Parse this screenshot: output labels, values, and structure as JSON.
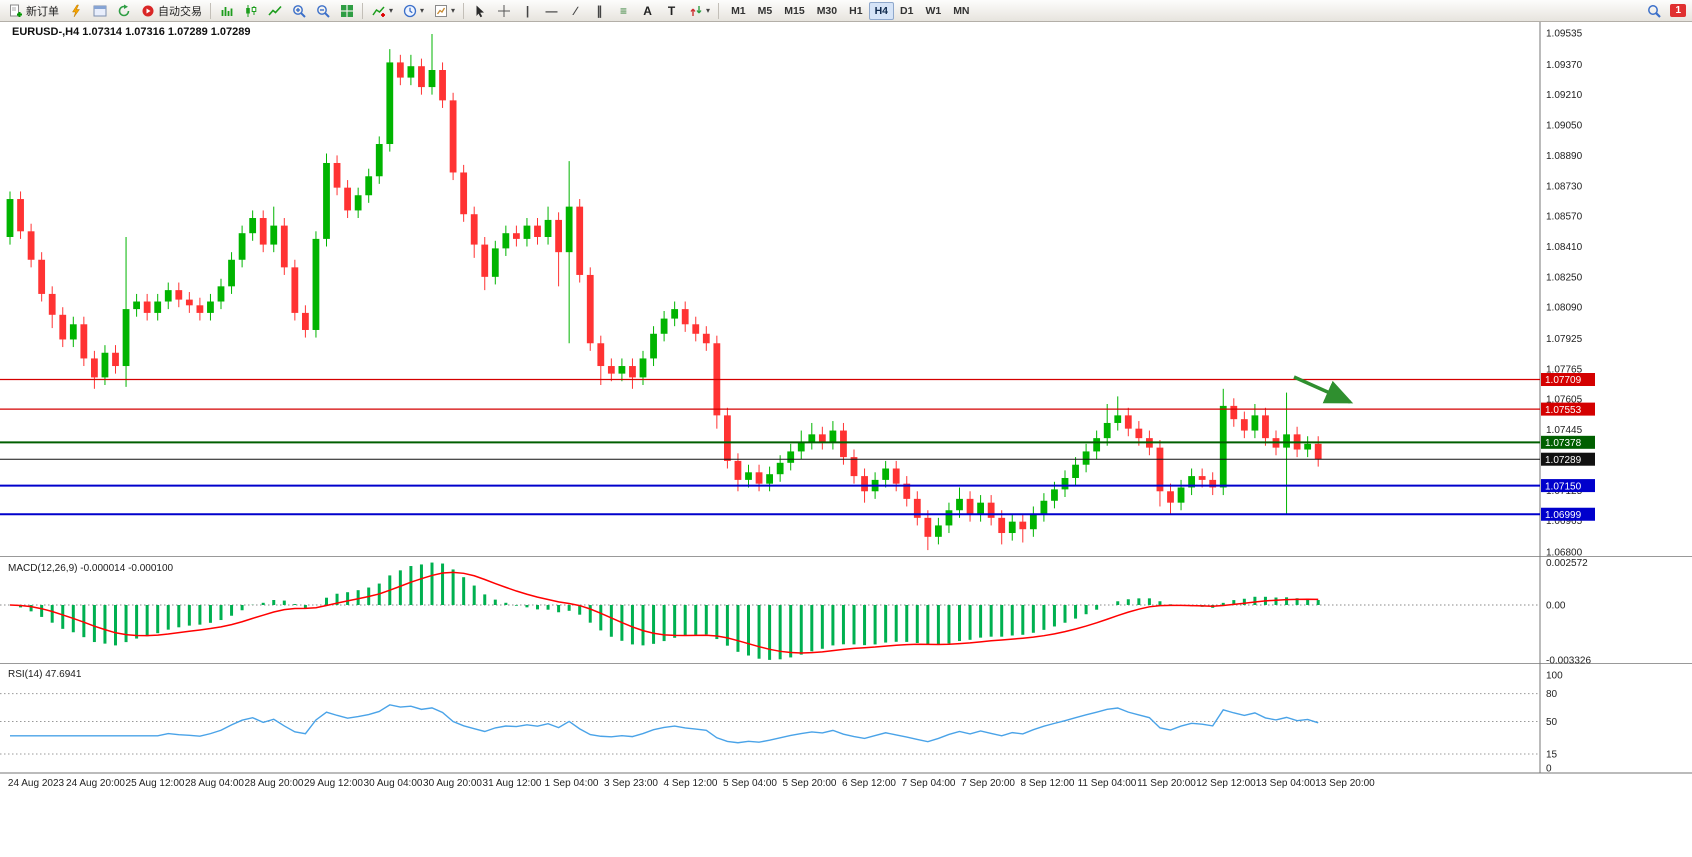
{
  "toolbar": {
    "items": [
      {
        "kind": "btn",
        "name": "new-order-button",
        "icon": "new-order",
        "label": "新订单"
      },
      {
        "kind": "btn",
        "name": "lightning-button",
        "icon": "lightning"
      },
      {
        "kind": "btn",
        "name": "open-chart-button",
        "icon": "chart-window"
      },
      {
        "kind": "btn",
        "name": "refresh-button",
        "icon": "refresh"
      },
      {
        "kind": "btn",
        "name": "autotrade-button",
        "icon": "autotrade",
        "label": "自动交易"
      },
      {
        "kind": "sep"
      },
      {
        "kind": "btn",
        "name": "bar-chart-button",
        "icon": "bars"
      },
      {
        "kind": "btn",
        "name": "candlestick-chart-button",
        "icon": "candles"
      },
      {
        "kind": "btn",
        "name": "line-chart-button",
        "icon": "line-chart"
      },
      {
        "kind": "btn",
        "name": "zoom-in-button",
        "icon": "zoom-in"
      },
      {
        "kind": "btn",
        "name": "zoom-out-button",
        "icon": "zoom-out"
      },
      {
        "kind": "btn",
        "name": "tile-windows-button",
        "icon": "tiles"
      },
      {
        "kind": "sep"
      },
      {
        "kind": "btn",
        "name": "indicators-button",
        "icon": "indicators",
        "caret": true
      },
      {
        "kind": "btn",
        "name": "periods-button",
        "icon": "clock",
        "caret": true
      },
      {
        "kind": "btn",
        "name": "templates-button",
        "icon": "template",
        "caret": true
      },
      {
        "kind": "sep"
      },
      {
        "kind": "btn",
        "name": "cursor-button",
        "icon": "cursor"
      },
      {
        "kind": "btn",
        "name": "crosshair-button",
        "icon": "crosshair"
      },
      {
        "kind": "btn",
        "name": "vertical-line-button",
        "glyph": "|",
        "glyph_color": "#444"
      },
      {
        "kind": "btn",
        "name": "horizontal-line-button",
        "glyph": "—",
        "glyph_color": "#444"
      },
      {
        "kind": "btn",
        "name": "trendline-button",
        "glyph": "∕",
        "glyph_color": "#444"
      },
      {
        "kind": "btn",
        "name": "equidistant-channel-button",
        "glyph": "∥",
        "glyph_color": "#444"
      },
      {
        "kind": "btn",
        "name": "fibonacci-button",
        "glyph": "≡",
        "glyph_color": "#2e7d32"
      },
      {
        "kind": "btn",
        "name": "text-button",
        "glyph": "A",
        "glyph_color": "#222"
      },
      {
        "kind": "btn",
        "name": "text-label-button",
        "glyph": "T",
        "glyph_color": "#222"
      },
      {
        "kind": "btn",
        "name": "arrows-button",
        "icon": "arrows",
        "caret": true
      },
      {
        "kind": "sep"
      }
    ],
    "timeframes": [
      "M1",
      "M5",
      "M15",
      "M30",
      "H1",
      "H4",
      "D1",
      "W1",
      "MN"
    ],
    "active_timeframe": "H4",
    "notification_count": "1"
  },
  "chart": {
    "title_line": "EURUSD-,H4  1.07314 1.07316 1.07289 1.07289",
    "price_scale": [
      "1.09535",
      "1.09370",
      "1.09210",
      "1.09050",
      "1.08890",
      "1.08730",
      "1.08570",
      "1.08410",
      "1.08250",
      "1.08090",
      "1.07925",
      "1.07765",
      "1.07605",
      "1.07445",
      "1.07285",
      "1.07125",
      "1.06965",
      "1.06800"
    ],
    "levels": [
      {
        "price": 1.07709,
        "label": "1.07709",
        "color": "#d40000",
        "width": 1.2,
        "type": "resistance-upper"
      },
      {
        "price": 1.07553,
        "label": "1.07553",
        "color": "#d40000",
        "width": 1.2,
        "type": "resistance-lower"
      },
      {
        "price": 1.07378,
        "label": "1.07378",
        "color": "#005f00",
        "width": 2,
        "type": "pivot"
      },
      {
        "price": 1.07289,
        "label": "1.07289",
        "color": "#111111",
        "width": 1,
        "type": "bid"
      },
      {
        "price": 1.0715,
        "label": "1.07150",
        "color": "#0000cc",
        "width": 2,
        "type": "support-upper"
      },
      {
        "price": 1.06999,
        "label": "1.06999",
        "color": "#0000cc",
        "width": 2,
        "type": "support-lower"
      }
    ],
    "colors": {
      "bull": "#00b400",
      "bear": "#ff3333",
      "macd_hist": "#00b050",
      "macd_signal": "#ff0000",
      "rsi_line": "#4aa3e8",
      "arrow": "#2f8f2f"
    }
  },
  "macd": {
    "label": "MACD(12,26,9) -0.000014 -0.000100",
    "scale": [
      "0.002572",
      "0.00",
      "-0.003326"
    ]
  },
  "rsi": {
    "label": "RSI(14) 47.6941",
    "scale": [
      "100",
      "80",
      "50",
      "15",
      "0"
    ],
    "levels": [
      80,
      50,
      15
    ]
  },
  "time_axis": [
    "24 Aug 2023",
    "24 Aug 20:00",
    "25 Aug 12:00",
    "28 Aug 04:00",
    "28 Aug 20:00",
    "29 Aug 12:00",
    "30 Aug 04:00",
    "30 Aug 20:00",
    "31 Aug 12:00",
    "1 Sep 04:00",
    "3 Sep 23:00",
    "4 Sep 12:00",
    "5 Sep 04:00",
    "5 Sep 20:00",
    "6 Sep 12:00",
    "7 Sep 04:00",
    "7 Sep 20:00",
    "8 Sep 12:00",
    "11 Sep 04:00",
    "11 Sep 20:00",
    "12 Sep 12:00",
    "13 Sep 04:00",
    "13 Sep 20:00"
  ],
  "chart_data": {
    "type": "candlestick",
    "symbol": "EURUSD-",
    "timeframe": "H4",
    "ohlc_display": "1.07314 1.07316 1.07289 1.07289",
    "indicators": [
      {
        "name": "MACD",
        "params": [
          12,
          26,
          9
        ],
        "current": "-0.000014 -0.000100"
      },
      {
        "name": "RSI",
        "params": [
          14
        ],
        "current": 47.6941
      }
    ],
    "candles": [
      [
        1.0846,
        1.087,
        1.0842,
        1.0866
      ],
      [
        1.0866,
        1.087,
        1.0845,
        1.0849
      ],
      [
        1.0849,
        1.0853,
        1.083,
        1.0834
      ],
      [
        1.0834,
        1.0838,
        1.0812,
        1.0816
      ],
      [
        1.0816,
        1.082,
        1.0798,
        1.0805
      ],
      [
        1.0805,
        1.0809,
        1.0788,
        1.0792
      ],
      [
        1.0792,
        1.0804,
        1.0788,
        1.08
      ],
      [
        1.08,
        1.0804,
        1.0778,
        1.0782
      ],
      [
        1.0782,
        1.0786,
        1.0766,
        1.0772
      ],
      [
        1.0772,
        1.0789,
        1.0768,
        1.0785
      ],
      [
        1.0785,
        1.0789,
        1.0774,
        1.0778
      ],
      [
        1.0778,
        1.0846,
        1.0767,
        1.0808
      ],
      [
        1.0808,
        1.0816,
        1.0804,
        1.0812
      ],
      [
        1.0812,
        1.0816,
        1.0802,
        1.0806
      ],
      [
        1.0806,
        1.0816,
        1.0802,
        1.0812
      ],
      [
        1.0812,
        1.0822,
        1.0808,
        1.0818
      ],
      [
        1.0818,
        1.0822,
        1.0809,
        1.0813
      ],
      [
        1.0813,
        1.0817,
        1.0806,
        1.081
      ],
      [
        1.081,
        1.0814,
        1.0802,
        1.0806
      ],
      [
        1.0806,
        1.0816,
        1.0802,
        1.0812
      ],
      [
        1.0812,
        1.0824,
        1.0808,
        1.082
      ],
      [
        1.082,
        1.0838,
        1.0816,
        1.0834
      ],
      [
        1.0834,
        1.0852,
        1.083,
        1.0848
      ],
      [
        1.0848,
        1.086,
        1.0844,
        1.0856
      ],
      [
        1.0856,
        1.086,
        1.0838,
        1.0842
      ],
      [
        1.0842,
        1.0862,
        1.0838,
        1.0852
      ],
      [
        1.0852,
        1.0856,
        1.0826,
        1.083
      ],
      [
        1.083,
        1.0834,
        1.0802,
        1.0806
      ],
      [
        1.0806,
        1.081,
        1.0793,
        1.0797
      ],
      [
        1.0797,
        1.0849,
        1.0793,
        1.0845
      ],
      [
        1.0845,
        1.089,
        1.0841,
        1.0885
      ],
      [
        1.0885,
        1.0889,
        1.0868,
        1.0872
      ],
      [
        1.0872,
        1.0876,
        1.0856,
        1.086
      ],
      [
        1.086,
        1.0872,
        1.0856,
        1.0868
      ],
      [
        1.0868,
        1.0882,
        1.0864,
        1.0878
      ],
      [
        1.0878,
        1.0899,
        1.0874,
        1.0895
      ],
      [
        1.0895,
        1.0945,
        1.0891,
        1.0938
      ],
      [
        1.0938,
        1.0942,
        1.0926,
        1.093
      ],
      [
        1.093,
        1.0942,
        1.0926,
        1.0936
      ],
      [
        1.0936,
        1.094,
        1.0921,
        1.0925
      ],
      [
        1.0925,
        1.0953,
        1.0921,
        1.0934
      ],
      [
        1.0934,
        1.0938,
        1.0914,
        1.0918
      ],
      [
        1.0918,
        1.0922,
        1.0876,
        1.088
      ],
      [
        1.088,
        1.0884,
        1.0854,
        1.0858
      ],
      [
        1.0858,
        1.0862,
        1.0835,
        1.0842
      ],
      [
        1.0842,
        1.0846,
        1.0818,
        1.0825
      ],
      [
        1.0825,
        1.0844,
        1.0821,
        1.084
      ],
      [
        1.084,
        1.0852,
        1.0836,
        1.0848
      ],
      [
        1.0848,
        1.0852,
        1.0841,
        1.0845
      ],
      [
        1.0845,
        1.0856,
        1.0841,
        1.0852
      ],
      [
        1.0852,
        1.0856,
        1.0842,
        1.0846
      ],
      [
        1.0846,
        1.0862,
        1.0842,
        1.0855
      ],
      [
        1.0855,
        1.0859,
        1.082,
        1.0838
      ],
      [
        1.0838,
        1.0886,
        1.079,
        1.0862
      ],
      [
        1.0862,
        1.0866,
        1.0822,
        1.0826
      ],
      [
        1.0826,
        1.083,
        1.0786,
        1.079
      ],
      [
        1.079,
        1.0794,
        1.0768,
        1.0778
      ],
      [
        1.0778,
        1.0782,
        1.077,
        1.0774
      ],
      [
        1.0774,
        1.0782,
        1.077,
        1.0778
      ],
      [
        1.0778,
        1.0782,
        1.0766,
        1.0772
      ],
      [
        1.0772,
        1.0786,
        1.0768,
        1.0782
      ],
      [
        1.0782,
        1.0799,
        1.0778,
        1.0795
      ],
      [
        1.0795,
        1.0807,
        1.0791,
        1.0803
      ],
      [
        1.0803,
        1.0812,
        1.0799,
        1.0808
      ],
      [
        1.0808,
        1.0812,
        1.0796,
        1.08
      ],
      [
        1.08,
        1.0804,
        1.0791,
        1.0795
      ],
      [
        1.0795,
        1.0799,
        1.0786,
        1.079
      ],
      [
        1.079,
        1.0794,
        1.0745,
        1.0752
      ],
      [
        1.0752,
        1.0756,
        1.0724,
        1.0728
      ],
      [
        1.0728,
        1.0732,
        1.0712,
        1.0718
      ],
      [
        1.0718,
        1.0726,
        1.0714,
        1.0722
      ],
      [
        1.0722,
        1.0726,
        1.0712,
        1.0716
      ],
      [
        1.0716,
        1.0725,
        1.0712,
        1.0721
      ],
      [
        1.0721,
        1.0731,
        1.0717,
        1.0727
      ],
      [
        1.0727,
        1.0737,
        1.0723,
        1.0733
      ],
      [
        1.0733,
        1.0744,
        1.0729,
        1.0738
      ],
      [
        1.0738,
        1.0748,
        1.0734,
        1.0742
      ],
      [
        1.0742,
        1.0746,
        1.0734,
        1.0738
      ],
      [
        1.0738,
        1.0749,
        1.0734,
        1.0744
      ],
      [
        1.0744,
        1.0748,
        1.0726,
        1.073
      ],
      [
        1.073,
        1.0734,
        1.0716,
        1.072
      ],
      [
        1.072,
        1.0724,
        1.0706,
        1.0712
      ],
      [
        1.0712,
        1.0722,
        1.0708,
        1.0718
      ],
      [
        1.0718,
        1.0728,
        1.0714,
        1.0724
      ],
      [
        1.0724,
        1.0728,
        1.0712,
        1.0716
      ],
      [
        1.0716,
        1.072,
        1.0704,
        1.0708
      ],
      [
        1.0708,
        1.0712,
        1.0694,
        1.0698
      ],
      [
        1.0698,
        1.0702,
        1.0681,
        1.0688
      ],
      [
        1.0688,
        1.0698,
        1.0684,
        1.0694
      ],
      [
        1.0694,
        1.0706,
        1.069,
        1.0702
      ],
      [
        1.0702,
        1.0714,
        1.0698,
        1.0708
      ],
      [
        1.0708,
        1.0712,
        1.0696,
        1.07
      ],
      [
        1.07,
        1.071,
        1.0696,
        1.0706
      ],
      [
        1.0706,
        1.071,
        1.0694,
        1.0698
      ],
      [
        1.0698,
        1.0702,
        1.0684,
        1.069
      ],
      [
        1.069,
        1.07,
        1.0686,
        1.0696
      ],
      [
        1.0696,
        1.07,
        1.0685,
        1.0692
      ],
      [
        1.0692,
        1.0704,
        1.0688,
        1.07
      ],
      [
        1.07,
        1.0711,
        1.0696,
        1.0707
      ],
      [
        1.0707,
        1.0717,
        1.0703,
        1.0713
      ],
      [
        1.0713,
        1.0723,
        1.0709,
        1.0719
      ],
      [
        1.0719,
        1.073,
        1.0715,
        1.0726
      ],
      [
        1.0726,
        1.0737,
        1.0722,
        1.0733
      ],
      [
        1.0733,
        1.0744,
        1.0729,
        1.074
      ],
      [
        1.074,
        1.0758,
        1.0736,
        1.0748
      ],
      [
        1.0748,
        1.0762,
        1.0744,
        1.0752
      ],
      [
        1.0752,
        1.0756,
        1.0741,
        1.0745
      ],
      [
        1.0745,
        1.0749,
        1.0736,
        1.074
      ],
      [
        1.074,
        1.0744,
        1.0731,
        1.0735
      ],
      [
        1.0735,
        1.0739,
        1.0704,
        1.0712
      ],
      [
        1.0712,
        1.0716,
        1.07,
        1.0706
      ],
      [
        1.0706,
        1.0718,
        1.0702,
        1.0714
      ],
      [
        1.0714,
        1.0724,
        1.071,
        1.072
      ],
      [
        1.072,
        1.0724,
        1.0714,
        1.0718
      ],
      [
        1.0718,
        1.0722,
        1.071,
        1.0714
      ],
      [
        1.0714,
        1.0766,
        1.071,
        1.0757
      ],
      [
        1.0757,
        1.0761,
        1.0746,
        1.075
      ],
      [
        1.075,
        1.0754,
        1.074,
        1.0744
      ],
      [
        1.0744,
        1.0758,
        1.074,
        1.0752
      ],
      [
        1.0752,
        1.0756,
        1.0736,
        1.074
      ],
      [
        1.074,
        1.0744,
        1.0731,
        1.0735
      ],
      [
        1.0735,
        1.0764,
        1.07,
        1.0742
      ],
      [
        1.0742,
        1.0746,
        1.073,
        1.0734
      ],
      [
        1.0734,
        1.0741,
        1.073,
        1.0737
      ],
      [
        1.0737,
        1.0741,
        1.0725,
        1.0729
      ]
    ]
  }
}
